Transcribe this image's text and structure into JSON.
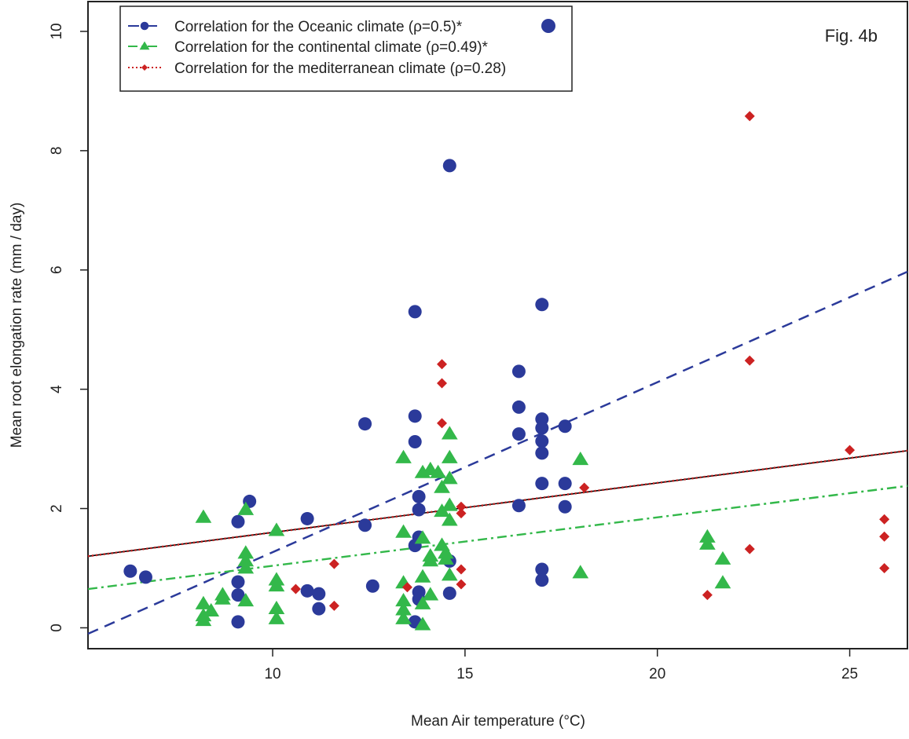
{
  "chart_data": {
    "type": "scatter",
    "figure_label": "Fig. 4b",
    "xlabel": "Mean Air temperature (°C)",
    "ylabel": "Mean root elongation rate (mm / day)",
    "xlim": [
      5.2,
      26.5
    ],
    "ylim": [
      -0.35,
      10.5
    ],
    "x_ticks": [
      10,
      15,
      20,
      25
    ],
    "y_ticks": [
      0,
      2,
      4,
      6,
      8,
      10
    ],
    "grid": false,
    "legend_position": "top-left",
    "colors": {
      "oceanic": "#2B3A9A",
      "continental": "#33B84A",
      "mediterranean": "#CC2222",
      "overall": "#000000"
    },
    "legend": [
      {
        "label": "Correlation for the Oceanic climate (ρ=0.5)*",
        "series": "oceanic"
      },
      {
        "label": "Correlation for the continental climate (ρ=0.49)*",
        "series": "continental"
      },
      {
        "label": "Correlation for the mediterranean climate (ρ=0.28)",
        "series": "mediterranean"
      }
    ],
    "series": [
      {
        "name": "Correlation for the Oceanic climate (ρ=0.5)*",
        "key": "oceanic",
        "marker": "circle",
        "points": [
          [
            6.3,
            0.95
          ],
          [
            6.7,
            0.85
          ],
          [
            9.1,
            1.78
          ],
          [
            9.4,
            2.12
          ],
          [
            9.1,
            0.77
          ],
          [
            9.1,
            0.55
          ],
          [
            9.1,
            0.1
          ],
          [
            10.9,
            1.83
          ],
          [
            10.9,
            0.62
          ],
          [
            11.2,
            0.57
          ],
          [
            11.2,
            0.32
          ],
          [
            12.4,
            3.42
          ],
          [
            12.4,
            1.72
          ],
          [
            12.6,
            0.7
          ],
          [
            13.7,
            5.3
          ],
          [
            13.7,
            3.55
          ],
          [
            13.7,
            3.12
          ],
          [
            13.8,
            2.2
          ],
          [
            13.8,
            1.98
          ],
          [
            13.8,
            1.52
          ],
          [
            13.7,
            1.38
          ],
          [
            13.8,
            0.6
          ],
          [
            13.8,
            0.48
          ],
          [
            13.7,
            0.1
          ],
          [
            14.6,
            7.75
          ],
          [
            14.6,
            1.12
          ],
          [
            14.6,
            0.58
          ],
          [
            16.4,
            4.3
          ],
          [
            16.4,
            3.7
          ],
          [
            16.4,
            3.25
          ],
          [
            16.4,
            2.05
          ],
          [
            17.0,
            5.42
          ],
          [
            17.0,
            3.5
          ],
          [
            17.0,
            3.35
          ],
          [
            17.0,
            3.13
          ],
          [
            17.0,
            2.93
          ],
          [
            17.0,
            2.42
          ],
          [
            17.0,
            0.98
          ],
          [
            17.0,
            0.8
          ],
          [
            17.6,
            3.38
          ],
          [
            17.6,
            2.42
          ],
          [
            17.6,
            2.03
          ]
        ],
        "trend": [
          [
            5.2,
            -0.1
          ],
          [
            26.5,
            5.97
          ]
        ]
      },
      {
        "name": "Correlation for the continental climate (ρ=0.49)*",
        "key": "continental",
        "marker": "triangle",
        "points": [
          [
            8.2,
            1.85
          ],
          [
            8.2,
            0.4
          ],
          [
            8.2,
            0.2
          ],
          [
            8.2,
            0.12
          ],
          [
            8.4,
            0.28
          ],
          [
            8.7,
            0.55
          ],
          [
            8.7,
            0.48
          ],
          [
            9.3,
            1.98
          ],
          [
            9.3,
            1.25
          ],
          [
            9.3,
            1.12
          ],
          [
            9.3,
            1.0
          ],
          [
            9.3,
            0.45
          ],
          [
            10.1,
            1.63
          ],
          [
            10.1,
            0.8
          ],
          [
            10.1,
            0.7
          ],
          [
            10.1,
            0.32
          ],
          [
            10.1,
            0.15
          ],
          [
            13.4,
            2.85
          ],
          [
            13.4,
            1.6
          ],
          [
            13.4,
            0.75
          ],
          [
            13.4,
            0.45
          ],
          [
            13.4,
            0.3
          ],
          [
            13.4,
            0.15
          ],
          [
            13.9,
            2.6
          ],
          [
            13.9,
            1.5
          ],
          [
            13.9,
            0.85
          ],
          [
            13.9,
            0.4
          ],
          [
            13.9,
            0.05
          ],
          [
            14.1,
            2.65
          ],
          [
            14.1,
            1.2
          ],
          [
            14.1,
            1.12
          ],
          [
            14.1,
            0.55
          ],
          [
            14.3,
            2.6
          ],
          [
            14.4,
            2.35
          ],
          [
            14.4,
            1.95
          ],
          [
            14.4,
            1.38
          ],
          [
            14.5,
            1.25
          ],
          [
            14.5,
            1.15
          ],
          [
            14.6,
            3.25
          ],
          [
            14.6,
            2.85
          ],
          [
            14.6,
            2.5
          ],
          [
            14.6,
            2.05
          ],
          [
            14.6,
            1.8
          ],
          [
            14.6,
            0.88
          ],
          [
            18.0,
            2.82
          ],
          [
            18.0,
            0.92
          ],
          [
            21.3,
            1.52
          ],
          [
            21.3,
            1.4
          ],
          [
            21.7,
            1.15
          ],
          [
            21.7,
            0.75
          ]
        ],
        "trend": [
          [
            5.2,
            0.65
          ],
          [
            26.5,
            2.38
          ]
        ]
      },
      {
        "name": "Correlation for the mediterranean climate (ρ=0.28)",
        "key": "mediterranean",
        "marker": "diamond",
        "points": [
          [
            10.6,
            0.65
          ],
          [
            11.6,
            1.07
          ],
          [
            11.6,
            0.37
          ],
          [
            13.5,
            0.68
          ],
          [
            14.4,
            4.42
          ],
          [
            14.4,
            4.1
          ],
          [
            14.4,
            3.43
          ],
          [
            14.9,
            2.03
          ],
          [
            14.9,
            1.92
          ],
          [
            14.9,
            0.98
          ],
          [
            14.9,
            0.73
          ],
          [
            18.1,
            2.35
          ],
          [
            21.3,
            0.55
          ],
          [
            22.4,
            8.58
          ],
          [
            22.4,
            4.48
          ],
          [
            22.4,
            1.32
          ],
          [
            25.0,
            2.98
          ],
          [
            25.9,
            1.82
          ],
          [
            25.9,
            1.53
          ],
          [
            25.9,
            1.0
          ]
        ],
        "trend": [
          [
            5.2,
            1.2
          ],
          [
            26.5,
            2.97
          ]
        ]
      }
    ],
    "overall_trend": [
      [
        5.2,
        1.2
      ],
      [
        26.5,
        2.97
      ]
    ]
  }
}
